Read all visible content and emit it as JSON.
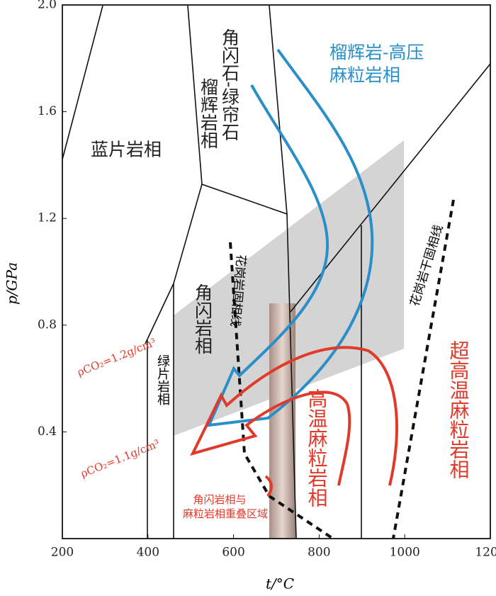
{
  "chart_data": {
    "type": "pt-diagram",
    "x_label": "t/°C",
    "y_label": "p/GPa",
    "xlim": [
      200,
      1200
    ],
    "ylim": [
      0,
      2
    ],
    "xticks": [
      200,
      400,
      600,
      800,
      1000,
      1200
    ],
    "yticks": [
      0.4,
      0.8,
      1.2,
      1.6,
      {
        "value": 2,
        "label": "2.0"
      }
    ],
    "facies": {
      "blueschist": "蓝片岩相",
      "amphibole_epidote_eclogite": [
        "角闪石-绿帘石",
        "榴辉岩相"
      ],
      "eclogite_hp_granulite": [
        "榴辉岩-高压",
        "麻粒岩相"
      ],
      "amphibolite": "角闪岩相",
      "greenschist": "绿片岩相",
      "ht_granulite": "高温麻粒岩相",
      "uht_granulite": "超高温麻粒岩相"
    },
    "annotations": {
      "dry_solidus": "花岗岩干固相线",
      "wet_solidus": "花岗岩固相线",
      "overlap": [
        "角闪岩相与",
        "麻粒岩相重叠区域"
      ],
      "rho_12": "ρCO₂=1.2g/cm³",
      "rho_11": "ρCO₂=1.1g/cm³"
    }
  }
}
